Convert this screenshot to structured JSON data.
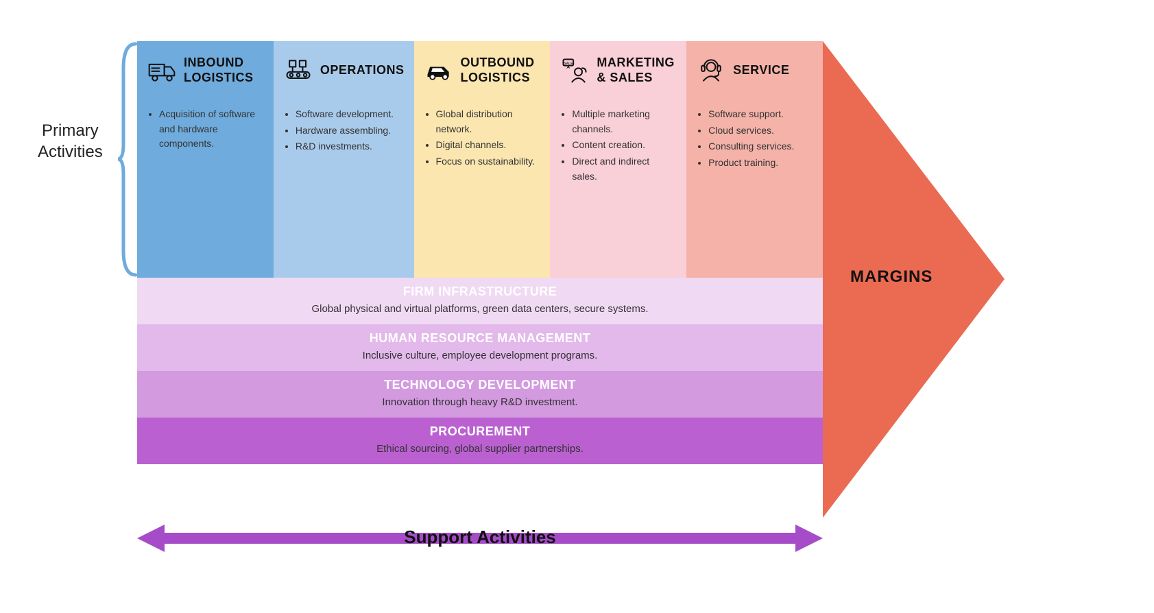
{
  "labels": {
    "primary_line1": "Primary",
    "primary_line2": "Activities",
    "support": "Support  Activities",
    "margins": "MARGINS"
  },
  "primary": [
    {
      "title": "INBOUND LOGISTICS",
      "bg": "#6fabdc",
      "icon": "truck",
      "items": [
        "Acquisition of software and hardware components."
      ]
    },
    {
      "title": "OPERATIONS",
      "bg": "#a9cbeb",
      "icon": "conveyor",
      "items": [
        "Software development.",
        "Hardware assembling.",
        "R&D investments."
      ]
    },
    {
      "title": "OUTBOUND LOGISTICS",
      "bg": "#fbe6b0",
      "icon": "car",
      "items": [
        "Global distribution network.",
        "Digital channels.",
        "Focus on sustainability."
      ]
    },
    {
      "title": "MARKETING & SALES",
      "bg": "#f9cfd8",
      "icon": "marketing",
      "items": [
        "Multiple marketing channels.",
        "Content creation.",
        "Direct and indirect sales."
      ]
    },
    {
      "title": "SERVICE",
      "bg": "#f4b2a8",
      "icon": "service",
      "items": [
        "Software support.",
        "Cloud services.",
        "Consulting services.",
        "Product training."
      ]
    }
  ],
  "support_rows": [
    {
      "title": "FIRM INFRASTRUCTURE",
      "desc": "Global physical and virtual platforms, green data centers, secure systems.",
      "bg": "#f0d9f3"
    },
    {
      "title": "HUMAN RESOURCE MANAGEMENT",
      "desc": "Inclusive culture, employee development programs.",
      "bg": "#e2b9ea"
    },
    {
      "title": "TECHNOLOGY DEVELOPMENT",
      "desc": "Innovation through heavy R&D investment.",
      "bg": "#d39ae0"
    },
    {
      "title": "PROCUREMENT",
      "desc": "Ethical sourcing, global supplier partnerships.",
      "bg": "#bb60d1"
    }
  ],
  "colors": {
    "margins_fill": "#eb6a52",
    "bracket": "#6fabdc",
    "support_arrow": "#a64cc9"
  }
}
